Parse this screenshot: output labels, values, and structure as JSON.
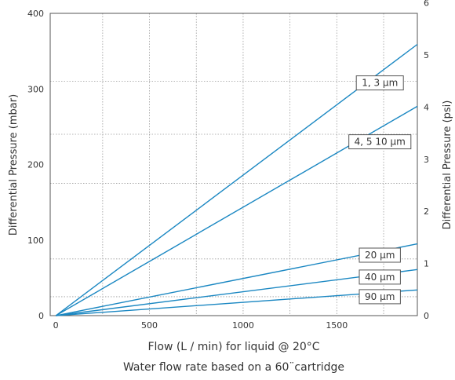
{
  "chart_data": {
    "type": "line",
    "xlabel": "Flow (L / min) for liquid @ 20°C",
    "subtitle": "Water flow rate based on a 60¨cartridge",
    "ylabel": "Differential Pressure (mbar)",
    "y2label": "Differential Pressure (psi)",
    "xlim": [
      -30,
      1930
    ],
    "ylim": [
      0,
      400
    ],
    "y2lim": [
      0,
      5.8
    ],
    "x_ticks": [
      "0",
      "500",
      "1000",
      "1500"
    ],
    "x_tick_values": [
      0,
      500,
      1000,
      1500
    ],
    "x_grid_values": [
      250,
      500,
      750,
      1000,
      1250,
      1500,
      1750
    ],
    "y_ticks": [
      "0",
      "100",
      "200",
      "300",
      "400"
    ],
    "y_tick_values": [
      0,
      100,
      200,
      300,
      400
    ],
    "y_grid_values": [
      25,
      75,
      175,
      240,
      310
    ],
    "y2_ticks": [
      "0",
      "1",
      "2",
      "3",
      "4",
      "5",
      "6"
    ],
    "y2_tick_values": [
      0,
      1,
      2,
      3,
      4,
      5,
      6
    ],
    "grid": true,
    "line_color": "#1a87c2",
    "series": [
      {
        "name": "1, 3 µm",
        "x": [
          0,
          1930
        ],
        "y": [
          0,
          359
        ],
        "label_at": [
          1730,
          308
        ]
      },
      {
        "name": "4, 5 10 µm",
        "x": [
          0,
          1930
        ],
        "y": [
          0,
          277
        ],
        "label_at": [
          1730,
          230
        ]
      },
      {
        "name": "20 µm",
        "x": [
          0,
          1930
        ],
        "y": [
          0,
          95
        ],
        "label_at": [
          1730,
          80
        ]
      },
      {
        "name": "40 µm",
        "x": [
          0,
          1930
        ],
        "y": [
          0,
          61
        ],
        "label_at": [
          1730,
          51
        ]
      },
      {
        "name": "90 µm",
        "x": [
          0,
          1930
        ],
        "y": [
          0,
          34
        ],
        "label_at": [
          1730,
          25
        ]
      }
    ]
  }
}
